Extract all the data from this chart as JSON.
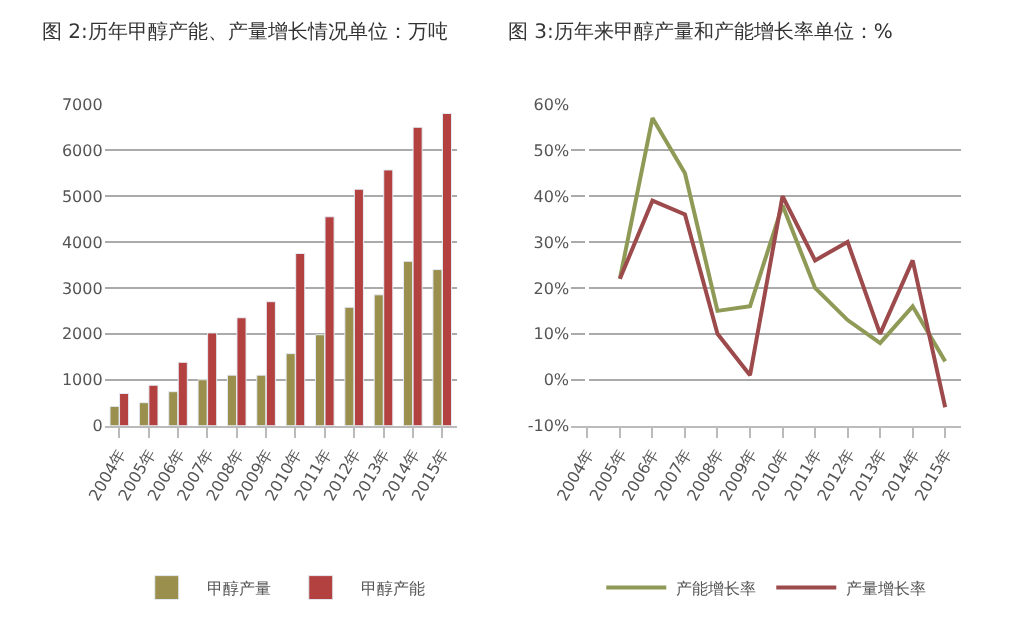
{
  "chart_data": [
    {
      "type": "bar",
      "title": "图 2:历年甲醇产能、产量增长情况单位：万吨",
      "categories": [
        "2004年",
        "2005年",
        "2006年",
        "2007年",
        "2008年",
        "2009年",
        "2010年",
        "2011年",
        "2012年",
        "2013年",
        "2014年",
        "2015年"
      ],
      "series": [
        {
          "name": "甲醇产量",
          "color": "#9a8f4c",
          "values": [
            420,
            500,
            740,
            1000,
            1100,
            1100,
            1570,
            1980,
            2580,
            2850,
            3580,
            3400
          ]
        },
        {
          "name": "甲醇产能",
          "color": "#b2413f",
          "values": [
            700,
            880,
            1380,
            2020,
            2350,
            2700,
            3750,
            4550,
            5150,
            5570,
            6500,
            6800
          ]
        }
      ],
      "ylim": [
        0,
        7000
      ],
      "yticks": [
        0,
        1000,
        2000,
        3000,
        4000,
        5000,
        6000,
        7000
      ],
      "grid": "y",
      "legend": "bottom"
    },
    {
      "type": "line",
      "title": "图 3:历年来甲醇产量和产能增长率单位：%",
      "categories": [
        "2004年",
        "2005年",
        "2006年",
        "2007年",
        "2008年",
        "2009年",
        "2010年",
        "2011年",
        "2012年",
        "2013年",
        "2014年",
        "2015年"
      ],
      "series": [
        {
          "name": "产能增长率",
          "color": "#8e9a56",
          "values": [
            null,
            22,
            57,
            45,
            15,
            16,
            38,
            20,
            13,
            8,
            16,
            4
          ]
        },
        {
          "name": "产量增长率",
          "color": "#9c4a4c",
          "values": [
            null,
            22,
            39,
            36,
            10,
            1,
            40,
            26,
            30,
            10,
            26,
            -6
          ]
        }
      ],
      "ylim": [
        -10,
        60
      ],
      "yticks": [
        {
          "value": -10,
          "label": "-10%"
        },
        {
          "value": 0,
          "label": "0%"
        },
        {
          "value": 10,
          "label": "10%"
        },
        {
          "value": 20,
          "label": "20%"
        },
        {
          "value": 30,
          "label": "30%"
        },
        {
          "value": 40,
          "label": "40%"
        },
        {
          "value": 50,
          "label": "50%"
        },
        {
          "value": 60,
          "label": "60%"
        }
      ],
      "grid": "y",
      "legend": "bottom",
      "marker": "none"
    }
  ]
}
